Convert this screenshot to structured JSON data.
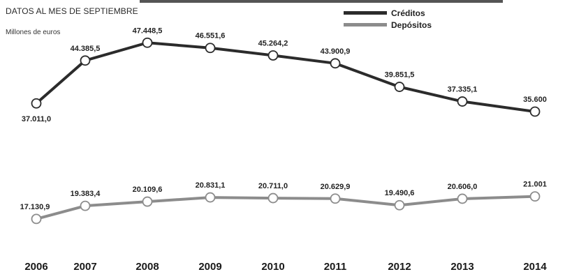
{
  "header": {
    "subtitle": "DATOS AL MES DE SEPTIEMBRE",
    "unit": "Millones de euros"
  },
  "legend": [
    {
      "label": "Créditos",
      "color": "#2b2b2b"
    },
    {
      "label": "Depósitos",
      "color": "#8c8c8c"
    }
  ],
  "chart_data": {
    "type": "line",
    "title": "",
    "subtitle": "DATOS AL MES DE SEPTIEMBRE",
    "ylabel": "Millones de euros",
    "xlabel": "",
    "x": [
      2006,
      2007,
      2008,
      2009,
      2010,
      2011,
      2012,
      2013,
      2014
    ],
    "tick_labels": [
      "2006",
      "2007",
      "2008",
      "2009",
      "2010",
      "2011",
      "2012",
      "2013",
      "2014"
    ],
    "ylim": [
      14000,
      50000
    ],
    "grid": false,
    "legend_position": "top-right",
    "series": [
      {
        "name": "Créditos",
        "color": "#2b2b2b",
        "values": [
          37011.0,
          44385.5,
          47448.5,
          46551.6,
          45264.2,
          43900.9,
          39851.5,
          37335.1,
          35600
        ],
        "labels": [
          "37.011,0",
          "44.385,5",
          "47.448,5",
          "46.551,6",
          "45.264,2",
          "43.900,9",
          "39.851,5",
          "37.335,1",
          "35.600"
        ]
      },
      {
        "name": "Depósitos",
        "color": "#8c8c8c",
        "values": [
          17130.9,
          19383.4,
          20109.6,
          20831.1,
          20711.0,
          20629.9,
          19490.6,
          20606.0,
          21001
        ],
        "labels": [
          "17.130,9",
          "19.383,4",
          "20.109,6",
          "20.831,1",
          "20.711,0",
          "20.629,9",
          "19.490,6",
          "20.606,0",
          "21.001"
        ]
      }
    ]
  }
}
